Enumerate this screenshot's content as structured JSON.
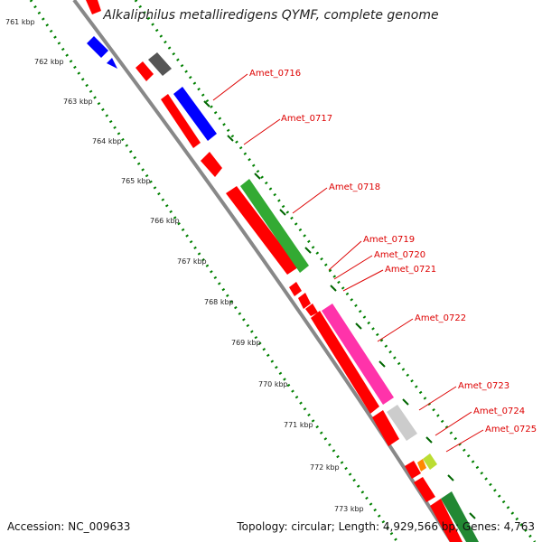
{
  "title": "Alkaliphilus metalliredigens QYMF, complete genome",
  "accession": "Accession: NC_009633",
  "topology": "Topology: circular; Length: 4,929,566 bp; Genes: 4,763",
  "colors": {
    "backbone": "#888888",
    "forward_gene": "#ff0000",
    "reverse_gene": "#0000ff",
    "tick_dotted": "#008000",
    "label": "#dd0000"
  },
  "kbp_labels": [
    "761 kbp",
    "762 kbp",
    "763 kbp",
    "764 kbp",
    "765 kbp",
    "766 kbp",
    "767 kbp",
    "768 kbp",
    "769 kbp",
    "770 kbp",
    "771 kbp",
    "772 kbp",
    "773 kbp"
  ],
  "gene_labels": [
    "Amet_0716",
    "Amet_0717",
    "Amet_0718",
    "Amet_0719",
    "Amet_0720",
    "Amet_0721",
    "Amet_0722",
    "Amet_0723",
    "Amet_0724",
    "Amet_0725"
  ]
}
